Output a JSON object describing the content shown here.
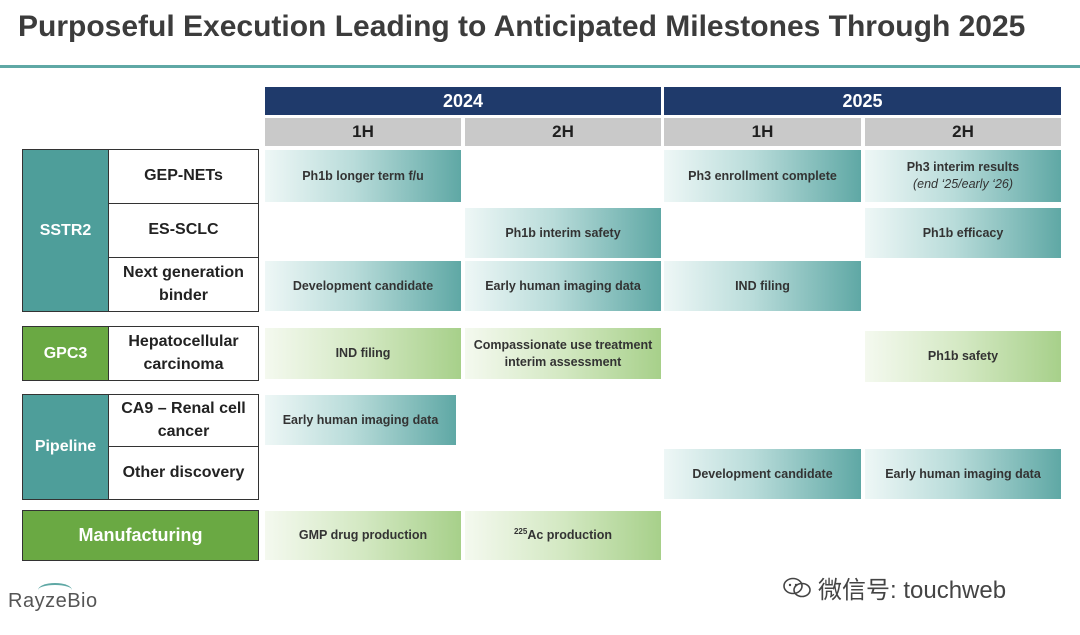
{
  "title": "Purposeful Execution Leading to Anticipated Milestones Through 2025",
  "years": [
    "2024",
    "2025"
  ],
  "halves": [
    "1H",
    "2H",
    "1H",
    "2H"
  ],
  "groups": {
    "sstr2": "SSTR2",
    "gpc3": "GPC3",
    "pipeline": "Pipeline",
    "manufacturing": "Manufacturing"
  },
  "rows": {
    "gep_nets": "GEP-NETs",
    "es_sclc": "ES-SCLC",
    "next_gen_1": "Next generation",
    "next_gen_2": "binder",
    "hcc_1": "Hepatocellular",
    "hcc_2": "carcinoma",
    "ca9_1": "CA9 –  Renal cell",
    "ca9_2": "cancer",
    "other": "Other discovery"
  },
  "milestones": {
    "gep_1h24": "Ph1b longer term f/u",
    "gep_1h25": "Ph3 enrollment complete",
    "gep_2h25": "Ph3 interim results",
    "gep_2h25_sub": "(end ‘25/early ‘26)",
    "sclc_2h24": "Ph1b interim safety",
    "sclc_2h25": "Ph1b efficacy",
    "ngb_1h24": "Development candidate",
    "ngb_2h24": "Early human imaging data",
    "ngb_1h25": "IND filing",
    "hcc_1h24": "IND filing",
    "hcc_2h24_1": "Compassionate use treatment",
    "hcc_2h24_2": "interim assessment",
    "hcc_2h25": "Ph1b safety",
    "ca9_1h24": "Early human imaging data",
    "other_1h25": "Development candidate",
    "other_2h25": "Early human imaging data",
    "mfg_1h24": "GMP drug production",
    "mfg_2h24_sup": "225",
    "mfg_2h24": "Ac production"
  },
  "logo": "RayzeBio",
  "watermark": "微信号: touchweb",
  "colors": {
    "navy": "#1f3a6b",
    "teal": "#4e9e9a",
    "green": "#6aa943",
    "gray": "#c9c9c9"
  }
}
